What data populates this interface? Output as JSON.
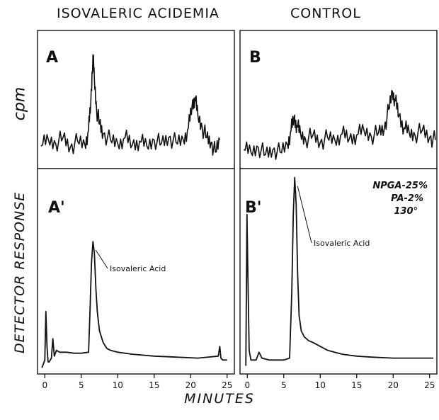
{
  "figure": {
    "left_title": "ISOVALERIC ACIDEMIA",
    "right_title": "CONTROL",
    "ylabel_top": "cpm",
    "ylabel_bottom": "DETECTOR RESPONSE",
    "xlabel": "MINUTES",
    "conditions": [
      "NPGA-25%",
      "PA-2%",
      "130°"
    ]
  },
  "chart_data": [
    {
      "type": "line",
      "panel": "A",
      "title": "",
      "xlabel": "MINUTES",
      "ylabel": "cpm",
      "xlim": [
        -1,
        26
      ],
      "ylim": [
        0,
        1
      ],
      "grid": false,
      "series": [
        {
          "x": [
            -0.5,
            0.5,
            1.5,
            2.5,
            3.5,
            4.5,
            5.5,
            6.0,
            6.3,
            6.6,
            6.8,
            7.1,
            7.5,
            8.0,
            9.0,
            10,
            11,
            12,
            13,
            14,
            15,
            16,
            17,
            18,
            19,
            19.7,
            20.2,
            20.6,
            21.0,
            21.6,
            22.2,
            22.8,
            23.4,
            24.0
          ],
          "y": [
            0.15,
            0.2,
            0.17,
            0.22,
            0.14,
            0.19,
            0.16,
            0.28,
            0.5,
            0.9,
            0.7,
            0.45,
            0.33,
            0.25,
            0.2,
            0.17,
            0.22,
            0.16,
            0.19,
            0.15,
            0.2,
            0.17,
            0.22,
            0.18,
            0.2,
            0.3,
            0.48,
            0.55,
            0.4,
            0.3,
            0.22,
            0.18,
            0.1,
            0.2
          ]
        }
      ]
    },
    {
      "type": "line",
      "panel": "B",
      "title": "",
      "xlabel": "MINUTES",
      "ylabel": "cpm",
      "xlim": [
        -1,
        26
      ],
      "ylim": [
        0,
        1
      ],
      "grid": false,
      "series": [
        {
          "x": [
            -0.5,
            0.5,
            1.5,
            2.5,
            3.5,
            4.5,
            5.5,
            6.0,
            6.4,
            6.8,
            7.3,
            8.0,
            9.0,
            10,
            11,
            12,
            13,
            14,
            15,
            16,
            17,
            18,
            18.8,
            19.4,
            19.9,
            20.3,
            20.8,
            21.5,
            22.2,
            23,
            24,
            25,
            25.8
          ],
          "y": [
            0.12,
            0.1,
            0.14,
            0.08,
            0.12,
            0.1,
            0.16,
            0.28,
            0.38,
            0.32,
            0.25,
            0.2,
            0.24,
            0.18,
            0.22,
            0.2,
            0.25,
            0.21,
            0.24,
            0.28,
            0.23,
            0.26,
            0.3,
            0.45,
            0.6,
            0.52,
            0.4,
            0.3,
            0.26,
            0.24,
            0.28,
            0.22,
            0.2
          ]
        }
      ]
    },
    {
      "type": "line",
      "panel": "A'",
      "title": "",
      "xlabel": "MINUTES",
      "ylabel": "DETECTOR RESPONSE",
      "xlim": [
        -1,
        26
      ],
      "ylim": [
        0,
        1
      ],
      "xticks": [
        0,
        5,
        10,
        15,
        20,
        25
      ],
      "grid": false,
      "annotation": "Isovaleric Acid",
      "series": [
        {
          "x": [
            -0.4,
            0.0,
            0.15,
            0.3,
            0.45,
            0.6,
            0.9,
            1.1,
            1.3,
            1.6,
            2.0,
            3.0,
            4.0,
            5.0,
            6.0,
            6.2,
            6.4,
            6.6,
            6.8,
            7.0,
            7.2,
            7.5,
            8.0,
            8.5,
            9.0,
            10,
            12,
            15,
            18,
            21,
            23.8,
            24.0,
            24.15,
            24.4,
            25.0
          ],
          "y": [
            0.01,
            0.05,
            0.3,
            0.12,
            0.04,
            0.04,
            0.06,
            0.16,
            0.07,
            0.1,
            0.09,
            0.09,
            0.085,
            0.085,
            0.09,
            0.3,
            0.55,
            0.66,
            0.6,
            0.42,
            0.3,
            0.2,
            0.14,
            0.11,
            0.1,
            0.09,
            0.08,
            0.07,
            0.065,
            0.06,
            0.07,
            0.12,
            0.06,
            0.05,
            0.05
          ]
        }
      ]
    },
    {
      "type": "line",
      "panel": "B'",
      "title": "",
      "xlabel": "MINUTES",
      "ylabel": "DETECTOR RESPONSE",
      "xlim": [
        -1,
        26
      ],
      "ylim": [
        0,
        1
      ],
      "xticks": [
        0,
        5,
        10,
        15,
        20,
        25
      ],
      "grid": false,
      "annotation": "Isovaleric Acid",
      "series": [
        {
          "x": [
            -0.2,
            -0.05,
            0.05,
            0.25,
            0.5,
            0.8,
            1.2,
            1.6,
            2.0,
            3.0,
            4.0,
            5.0,
            5.8,
            6.1,
            6.3,
            6.5,
            6.7,
            6.9,
            7.1,
            7.4,
            7.8,
            8.4,
            9.0,
            10,
            11,
            13,
            15,
            17,
            20,
            23,
            25.5
          ],
          "y": [
            0.02,
            0.8,
            0.55,
            0.1,
            0.05,
            0.05,
            0.05,
            0.09,
            0.06,
            0.05,
            0.05,
            0.05,
            0.06,
            0.4,
            0.8,
            0.99,
            0.85,
            0.5,
            0.28,
            0.2,
            0.17,
            0.15,
            0.14,
            0.12,
            0.1,
            0.08,
            0.07,
            0.065,
            0.06,
            0.06,
            0.06
          ]
        }
      ]
    }
  ]
}
